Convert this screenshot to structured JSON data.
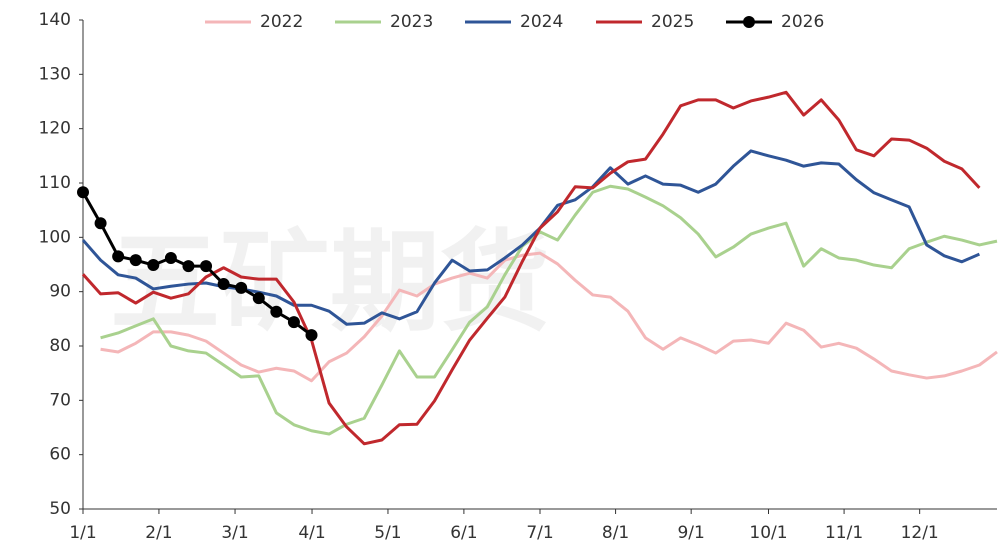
{
  "chart_data": {
    "type": "line",
    "watermark": "五矿期货",
    "x": [
      0,
      1,
      2,
      3,
      4,
      5,
      6,
      7,
      8,
      9,
      10,
      11,
      12,
      13,
      14,
      15,
      16,
      17,
      18,
      19,
      20,
      21,
      22,
      23,
      24,
      25,
      26,
      27,
      28,
      29,
      30,
      31,
      32,
      33,
      34,
      35,
      36,
      37,
      38,
      39,
      40,
      41,
      42,
      43,
      44,
      45,
      46,
      47,
      48,
      49,
      50,
      51,
      52
    ],
    "xlim": [
      0,
      52
    ],
    "xticks": [
      {
        "value": 0,
        "label": "1/1"
      },
      {
        "value": 4.32,
        "label": "2/1"
      },
      {
        "value": 8.65,
        "label": "3/1"
      },
      {
        "value": 13.03,
        "label": "4/1"
      },
      {
        "value": 17.35,
        "label": "5/1"
      },
      {
        "value": 21.67,
        "label": "6/1"
      },
      {
        "value": 26.0,
        "label": "7/1"
      },
      {
        "value": 30.3,
        "label": "8/1"
      },
      {
        "value": 34.6,
        "label": "9/1"
      },
      {
        "value": 39.0,
        "label": "10/1"
      },
      {
        "value": 43.3,
        "label": "11/1"
      },
      {
        "value": 47.6,
        "label": "12/1"
      }
    ],
    "ylim": [
      50,
      140
    ],
    "yticks": [
      50,
      60,
      70,
      80,
      90,
      100,
      110,
      120,
      130,
      140
    ],
    "legend": "top",
    "series": [
      {
        "name": "2022",
        "color": "#f4b6b8",
        "markers": false,
        "values": [
          null,
          79.4,
          78.9,
          80.5,
          82.6,
          82.6,
          82.0,
          80.9,
          78.7,
          76.5,
          75.2,
          75.9,
          75.4,
          73.6,
          77.1,
          78.7,
          81.7,
          85.5,
          90.3,
          89.2,
          91.4,
          92.5,
          93.4,
          92.5,
          95.8,
          96.7,
          97.1,
          95.1,
          92.1,
          89.4,
          89.0,
          86.4,
          81.5,
          79.4,
          81.5,
          80.2,
          78.7,
          80.9,
          81.1,
          80.5,
          84.2,
          82.9,
          79.8,
          80.5,
          79.6,
          77.6,
          75.4,
          74.7,
          74.1,
          74.5,
          75.4,
          76.5,
          78.9
        ]
      },
      {
        "name": "2023",
        "color": "#a9d18e",
        "markers": false,
        "values": [
          null,
          81.5,
          82.4,
          83.7,
          85.0,
          80.0,
          79.1,
          78.7,
          76.5,
          74.3,
          74.5,
          67.7,
          65.5,
          64.4,
          63.8,
          65.6,
          66.7,
          72.8,
          79.1,
          74.3,
          74.3,
          79.3,
          84.4,
          87.2,
          93.1,
          98.4,
          101.0,
          99.5,
          104.1,
          108.3,
          109.4,
          108.9,
          107.4,
          105.8,
          103.6,
          100.6,
          96.4,
          98.2,
          100.6,
          101.7,
          102.6,
          94.7,
          97.9,
          96.2,
          95.8,
          94.9,
          94.4,
          97.9,
          99.1,
          100.2,
          99.5,
          98.6,
          99.3
        ]
      },
      {
        "name": "2024",
        "color": "#2f5597",
        "markers": false,
        "values": [
          99.5,
          95.8,
          93.1,
          92.5,
          90.5,
          91.0,
          91.4,
          91.6,
          90.9,
          90.5,
          89.9,
          89.2,
          87.5,
          87.5,
          86.4,
          84.0,
          84.2,
          86.1,
          85.0,
          86.3,
          91.6,
          95.8,
          93.8,
          94.0,
          96.2,
          98.6,
          101.7,
          105.9,
          106.9,
          109.3,
          112.8,
          109.8,
          111.3,
          109.8,
          109.6,
          108.3,
          109.8,
          113.1,
          115.9,
          115.0,
          114.2,
          113.1,
          113.7,
          113.5,
          110.6,
          108.2,
          106.9,
          105.6,
          98.6,
          96.6,
          95.5,
          96.9,
          null
        ]
      },
      {
        "name": "2025",
        "color": "#c0282d",
        "markers": false,
        "values": [
          93.2,
          89.6,
          89.8,
          87.9,
          89.9,
          88.8,
          89.6,
          92.7,
          94.4,
          92.7,
          92.3,
          92.3,
          88.1,
          81.1,
          69.5,
          65.1,
          62.0,
          62.7,
          65.5,
          65.6,
          69.9,
          75.6,
          81.1,
          85.1,
          89.0,
          95.6,
          101.7,
          104.7,
          109.3,
          109.1,
          111.8,
          113.9,
          114.4,
          119.0,
          124.2,
          125.3,
          125.3,
          123.8,
          125.1,
          125.8,
          126.7,
          122.5,
          125.3,
          121.6,
          116.1,
          115.0,
          118.1,
          117.9,
          116.4,
          114.0,
          112.6,
          109.1,
          null
        ]
      },
      {
        "name": "2026",
        "color": "#000000",
        "markers": true,
        "values": [
          108.3,
          102.6,
          96.5,
          95.8,
          94.9,
          96.2,
          94.7,
          94.7,
          91.4,
          90.7,
          88.8,
          86.3,
          84.4,
          82.0,
          null,
          null,
          null,
          null,
          null,
          null,
          null,
          null,
          null,
          null,
          null,
          null,
          null,
          null,
          null,
          null,
          null,
          null,
          null,
          null,
          null,
          null,
          null,
          null,
          null,
          null,
          null,
          null,
          null,
          null,
          null,
          null,
          null,
          null,
          null,
          null,
          null,
          null,
          null
        ]
      }
    ]
  }
}
